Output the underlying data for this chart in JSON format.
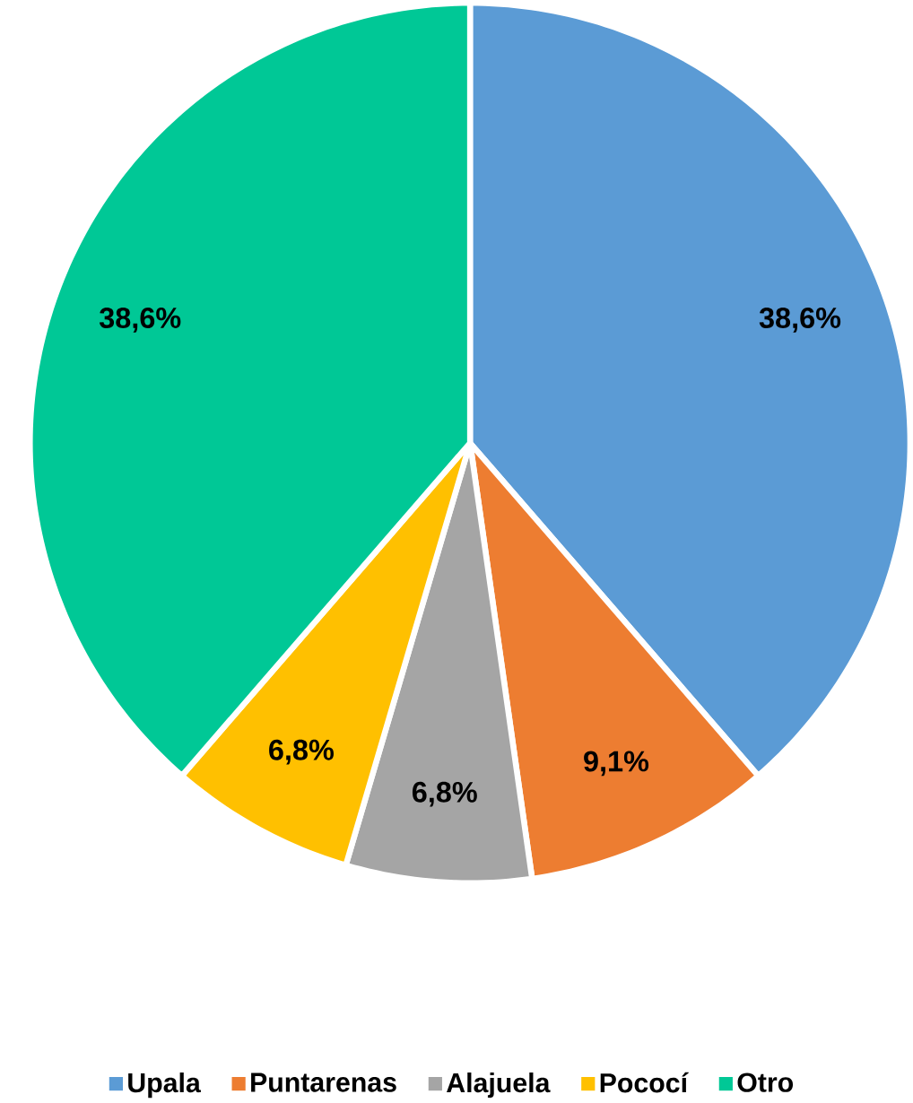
{
  "chart_data": {
    "type": "pie",
    "categories": [
      "Upala",
      "Puntarenas",
      "Alajuela",
      "Pococí",
      "Otro"
    ],
    "values": [
      38.6,
      9.1,
      6.8,
      6.8,
      38.6
    ],
    "colors": [
      "#5b9bd5",
      "#ed7d31",
      "#a5a5a5",
      "#ffc000",
      "#00c896"
    ],
    "value_labels": [
      "38,6%",
      "9,1%",
      "6,8%",
      "6,8%",
      "38,6%"
    ],
    "legend": "bottom"
  }
}
